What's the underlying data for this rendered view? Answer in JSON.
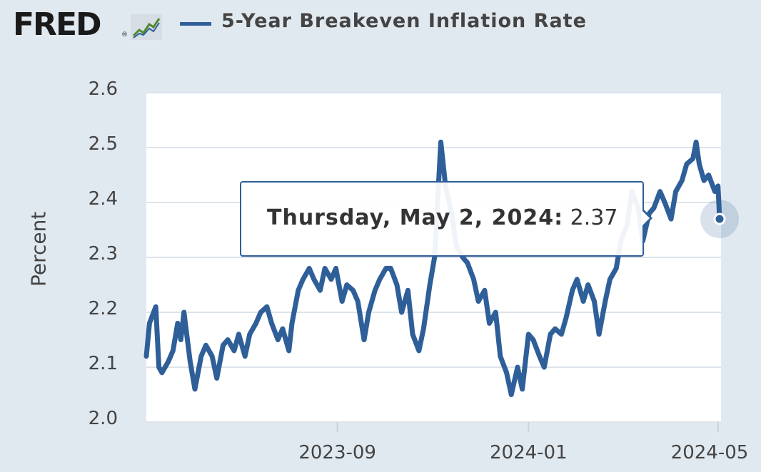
{
  "header": {
    "logo": "FRED",
    "logo_reg": "®",
    "logo_icon": "line-chart-icon",
    "series_name": "5-Year Breakeven Inflation Rate"
  },
  "tooltip": {
    "date": "Thursday, May 2, 2024:",
    "value": "2.37"
  },
  "colors": {
    "series": "#2f5f98",
    "background": "#e1e9f0",
    "plot_background": "#ffffff",
    "grid": "#dde3ea"
  },
  "chart_data": {
    "type": "line",
    "title": "",
    "xlabel": "",
    "ylabel": "Percent",
    "ylim": [
      2.0,
      2.6
    ],
    "yticks": [
      "2.0",
      "2.1",
      "2.2",
      "2.3",
      "2.4",
      "2.5",
      "2.6"
    ],
    "xlim": [
      "2023-05-02",
      "2024-05-02"
    ],
    "xticks": [
      {
        "date": "2023-09-01",
        "label": "2023-09"
      },
      {
        "date": "2024-01-01",
        "label": "2024-01"
      },
      {
        "date": "2024-05-01",
        "label": "2024-05"
      }
    ],
    "grid": true,
    "legend": "top-left",
    "series": [
      {
        "name": "5-Year Breakeven Inflation Rate",
        "points": [
          [
            "2023-05-02",
            2.12
          ],
          [
            "2023-05-04",
            2.18
          ],
          [
            "2023-05-08",
            2.21
          ],
          [
            "2023-05-10",
            2.1
          ],
          [
            "2023-05-12",
            2.09
          ],
          [
            "2023-05-16",
            2.11
          ],
          [
            "2023-05-19",
            2.13
          ],
          [
            "2023-05-22",
            2.18
          ],
          [
            "2023-05-24",
            2.15
          ],
          [
            "2023-05-26",
            2.2
          ],
          [
            "2023-05-30",
            2.11
          ],
          [
            "2023-06-02",
            2.06
          ],
          [
            "2023-06-06",
            2.12
          ],
          [
            "2023-06-09",
            2.14
          ],
          [
            "2023-06-13",
            2.12
          ],
          [
            "2023-06-16",
            2.08
          ],
          [
            "2023-06-20",
            2.14
          ],
          [
            "2023-06-23",
            2.15
          ],
          [
            "2023-06-27",
            2.13
          ],
          [
            "2023-06-30",
            2.16
          ],
          [
            "2023-07-04",
            2.12
          ],
          [
            "2023-07-07",
            2.16
          ],
          [
            "2023-07-11",
            2.18
          ],
          [
            "2023-07-14",
            2.2
          ],
          [
            "2023-07-18",
            2.21
          ],
          [
            "2023-07-21",
            2.18
          ],
          [
            "2023-07-25",
            2.15
          ],
          [
            "2023-07-28",
            2.17
          ],
          [
            "2023-08-01",
            2.13
          ],
          [
            "2023-08-03",
            2.18
          ],
          [
            "2023-08-07",
            2.24
          ],
          [
            "2023-08-10",
            2.26
          ],
          [
            "2023-08-14",
            2.28
          ],
          [
            "2023-08-17",
            2.26
          ],
          [
            "2023-08-21",
            2.24
          ],
          [
            "2023-08-24",
            2.28
          ],
          [
            "2023-08-28",
            2.26
          ],
          [
            "2023-08-31",
            2.28
          ],
          [
            "2023-09-04",
            2.22
          ],
          [
            "2023-09-07",
            2.25
          ],
          [
            "2023-09-11",
            2.24
          ],
          [
            "2023-09-14",
            2.22
          ],
          [
            "2023-09-18",
            2.15
          ],
          [
            "2023-09-21",
            2.2
          ],
          [
            "2023-09-25",
            2.24
          ],
          [
            "2023-09-28",
            2.26
          ],
          [
            "2023-10-02",
            2.28
          ],
          [
            "2023-10-05",
            2.28
          ],
          [
            "2023-10-09",
            2.25
          ],
          [
            "2023-10-12",
            2.2
          ],
          [
            "2023-10-16",
            2.24
          ],
          [
            "2023-10-19",
            2.16
          ],
          [
            "2023-10-23",
            2.13
          ],
          [
            "2023-10-26",
            2.17
          ],
          [
            "2023-10-30",
            2.25
          ],
          [
            "2023-11-02",
            2.3
          ],
          [
            "2023-11-06",
            2.51
          ],
          [
            "2023-11-09",
            2.43
          ],
          [
            "2023-11-13",
            2.38
          ],
          [
            "2023-11-16",
            2.32
          ],
          [
            "2023-11-20",
            2.3
          ],
          [
            "2023-11-23",
            2.29
          ],
          [
            "2023-11-27",
            2.26
          ],
          [
            "2023-11-30",
            2.22
          ],
          [
            "2023-12-04",
            2.24
          ],
          [
            "2023-12-07",
            2.18
          ],
          [
            "2023-12-11",
            2.2
          ],
          [
            "2023-12-14",
            2.12
          ],
          [
            "2023-12-18",
            2.09
          ],
          [
            "2023-12-21",
            2.05
          ],
          [
            "2023-12-25",
            2.1
          ],
          [
            "2023-12-28",
            2.06
          ],
          [
            "2024-01-01",
            2.16
          ],
          [
            "2024-01-04",
            2.15
          ],
          [
            "2024-01-08",
            2.12
          ],
          [
            "2024-01-11",
            2.1
          ],
          [
            "2024-01-15",
            2.16
          ],
          [
            "2024-01-18",
            2.17
          ],
          [
            "2024-01-22",
            2.16
          ],
          [
            "2024-01-25",
            2.19
          ],
          [
            "2024-01-29",
            2.24
          ],
          [
            "2024-02-01",
            2.26
          ],
          [
            "2024-02-05",
            2.22
          ],
          [
            "2024-02-08",
            2.25
          ],
          [
            "2024-02-12",
            2.22
          ],
          [
            "2024-02-15",
            2.16
          ],
          [
            "2024-02-19",
            2.22
          ],
          [
            "2024-02-22",
            2.26
          ],
          [
            "2024-02-26",
            2.28
          ],
          [
            "2024-02-29",
            2.33
          ],
          [
            "2024-03-04",
            2.36
          ],
          [
            "2024-03-07",
            2.42
          ],
          [
            "2024-03-11",
            2.39
          ],
          [
            "2024-03-14",
            2.33
          ],
          [
            "2024-03-18",
            2.38
          ],
          [
            "2024-03-21",
            2.39
          ],
          [
            "2024-03-25",
            2.42
          ],
          [
            "2024-03-28",
            2.4
          ],
          [
            "2024-04-01",
            2.37
          ],
          [
            "2024-04-04",
            2.42
          ],
          [
            "2024-04-08",
            2.44
          ],
          [
            "2024-04-11",
            2.47
          ],
          [
            "2024-04-15",
            2.48
          ],
          [
            "2024-04-17",
            2.51
          ],
          [
            "2024-04-19",
            2.47
          ],
          [
            "2024-04-22",
            2.44
          ],
          [
            "2024-04-25",
            2.45
          ],
          [
            "2024-04-29",
            2.42
          ],
          [
            "2024-05-01",
            2.43
          ],
          [
            "2024-05-02",
            2.37
          ]
        ]
      }
    ]
  }
}
